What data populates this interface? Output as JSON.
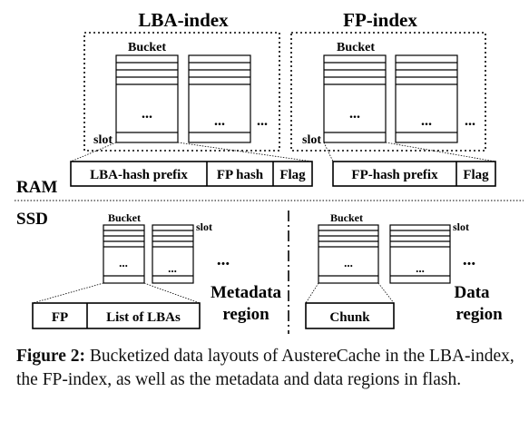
{
  "ram": {
    "label": "RAM",
    "lba_index": {
      "title": "LBA-index",
      "bucket_label": "Bucket",
      "slot_label": "slot",
      "dots": "...",
      "more": "...",
      "fields": [
        "LBA-hash prefix",
        "FP hash",
        "Flag"
      ]
    },
    "fp_index": {
      "title": "FP-index",
      "bucket_label": "Bucket",
      "slot_label": "slot",
      "dots": "...",
      "more": "...",
      "fields": [
        "FP-hash prefix",
        "Flag"
      ]
    }
  },
  "ssd": {
    "label": "SSD",
    "metadata": {
      "bucket_label": "Bucket",
      "slot_label": "slot",
      "dots": "...",
      "more": "...",
      "fields": [
        "FP",
        "List of LBAs"
      ],
      "region_label_1": "Metadata",
      "region_label_2": "region"
    },
    "data": {
      "bucket_label": "Bucket",
      "slot_label": "slot",
      "dots": "...",
      "more": "...",
      "fields": [
        "Chunk"
      ],
      "region_label_1": "Data",
      "region_label_2": "region"
    }
  },
  "caption": {
    "label": "Figure 2:",
    "text": "Bucketized data layouts of AustereCache in the LBA-index, the FP-index, as well as the metadata and data regions in flash."
  }
}
